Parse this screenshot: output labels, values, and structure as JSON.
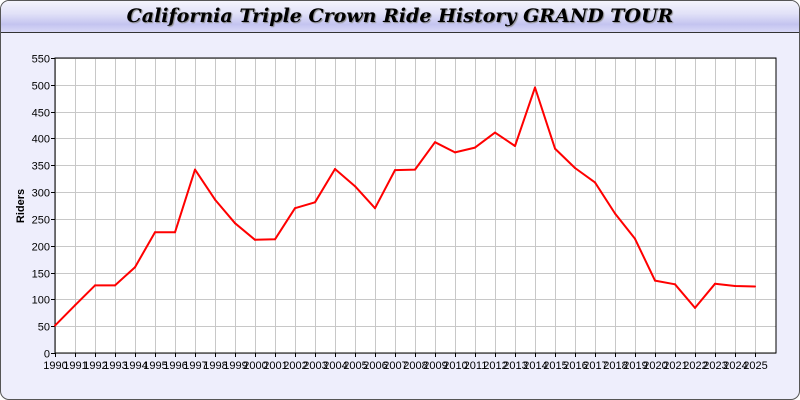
{
  "chart_data": {
    "type": "line",
    "title": "California Triple Crown Ride History GRAND TOUR",
    "xlabel": "",
    "ylabel": "Riders",
    "ylim": [
      0,
      550
    ],
    "yticks": [
      0,
      50,
      100,
      150,
      200,
      250,
      300,
      350,
      400,
      450,
      500,
      550
    ],
    "grid": true,
    "line_color": "#ff0000",
    "categories": [
      "1990",
      "1991",
      "1992",
      "1993",
      "1994",
      "1995",
      "1996",
      "1997",
      "1998",
      "1999",
      "2000",
      "2001",
      "2002",
      "2003",
      "2004",
      "2005",
      "2006",
      "2007",
      "2008",
      "2009",
      "2010",
      "2011",
      "2012",
      "2013",
      "2014",
      "2015",
      "2016",
      "2017",
      "2018",
      "2019",
      "2020",
      "2021",
      "2022",
      "2023",
      "2024",
      "2025"
    ],
    "series": [
      {
        "values": [
          51,
          89,
          126,
          126,
          160,
          225,
          225,
          342,
          286,
          242,
          211,
          212,
          270,
          281,
          343,
          311,
          270,
          341,
          342,
          393,
          374,
          383,
          411,
          386,
          495,
          381,
          345,
          318,
          260,
          213,
          135,
          128,
          84,
          129,
          125,
          124
        ]
      }
    ]
  }
}
